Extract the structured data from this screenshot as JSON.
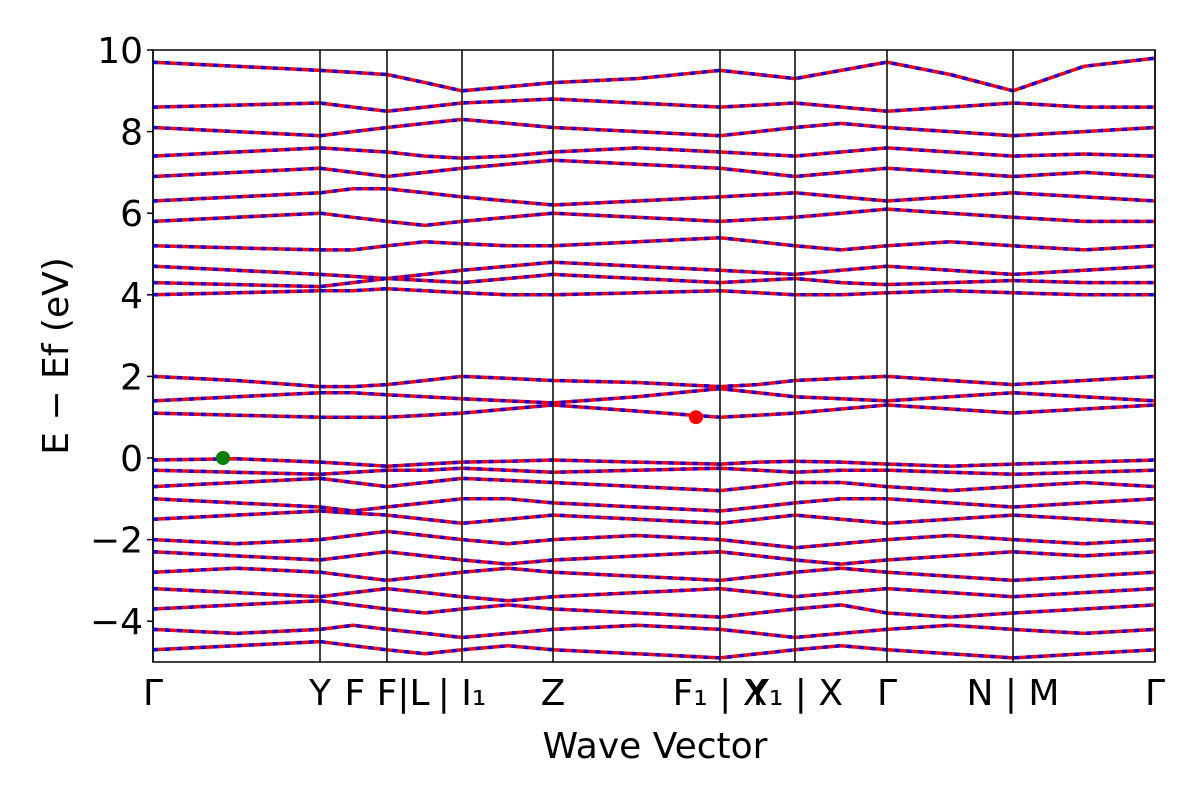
{
  "chart_data": {
    "type": "line",
    "xlabel": "Wave Vector",
    "ylabel": "E − Ef (eV)",
    "xlim": [
      0,
      1002
    ],
    "ylim": [
      -5,
      10
    ],
    "xticks": [
      {
        "value": 0,
        "label": "Γ"
      },
      {
        "value": 167,
        "label": "Y"
      },
      {
        "value": 234,
        "label": "F F|L"
      },
      {
        "value": 309,
        "label": "| I₁"
      },
      {
        "value": 400,
        "label": "Z"
      },
      {
        "value": 567,
        "label": "F₁ | X"
      },
      {
        "value": 642,
        "label": "Y₁ | X"
      },
      {
        "value": 734,
        "label": "Γ"
      },
      {
        "value": 860,
        "label": "N | M"
      },
      {
        "value": 1002,
        "label": "Γ"
      }
    ],
    "yticks": [
      {
        "value": -4,
        "label": "−4"
      },
      {
        "value": -2,
        "label": "−2"
      },
      0,
      2,
      4,
      6,
      8,
      10
    ],
    "color": "#ff0000",
    "dash_color": "#0000ff",
    "x": [
      0,
      83,
      167,
      200,
      234,
      272,
      309,
      355,
      400,
      484,
      567,
      605,
      642,
      688,
      734,
      797,
      860,
      931,
      1002
    ],
    "series": [
      {
        "values": [
          -0.05,
          -0.02,
          -0.1,
          -0.15,
          -0.2,
          -0.15,
          -0.1,
          -0.08,
          -0.05,
          -0.1,
          -0.15,
          -0.1,
          -0.08,
          -0.1,
          -0.15,
          -0.2,
          -0.15,
          -0.1,
          -0.05
        ]
      },
      {
        "values": [
          -0.3,
          -0.35,
          -0.4,
          -0.35,
          -0.3,
          -0.3,
          -0.25,
          -0.3,
          -0.35,
          -0.3,
          -0.25,
          -0.3,
          -0.35,
          -0.3,
          -0.3,
          -0.35,
          -0.4,
          -0.35,
          -0.3
        ]
      },
      {
        "values": [
          -0.7,
          -0.6,
          -0.5,
          -0.6,
          -0.7,
          -0.6,
          -0.5,
          -0.55,
          -0.6,
          -0.7,
          -0.8,
          -0.7,
          -0.6,
          -0.6,
          -0.7,
          -0.8,
          -0.7,
          -0.6,
          -0.7
        ]
      },
      {
        "values": [
          -1.0,
          -1.1,
          -1.2,
          -1.3,
          -1.2,
          -1.1,
          -1.0,
          -1.0,
          -1.1,
          -1.2,
          -1.3,
          -1.2,
          -1.1,
          -1.0,
          -1.0,
          -1.1,
          -1.2,
          -1.1,
          -1.0
        ]
      },
      {
        "values": [
          -1.5,
          -1.4,
          -1.3,
          -1.35,
          -1.4,
          -1.5,
          -1.6,
          -1.5,
          -1.4,
          -1.5,
          -1.6,
          -1.5,
          -1.4,
          -1.5,
          -1.6,
          -1.5,
          -1.4,
          -1.5,
          -1.6
        ]
      },
      {
        "values": [
          -2.0,
          -2.1,
          -2.0,
          -1.9,
          -1.8,
          -1.9,
          -2.0,
          -2.1,
          -2.0,
          -1.9,
          -2.0,
          -2.1,
          -2.2,
          -2.1,
          -2.0,
          -1.9,
          -2.0,
          -2.1,
          -2.0
        ]
      },
      {
        "values": [
          -2.3,
          -2.4,
          -2.5,
          -2.4,
          -2.3,
          -2.4,
          -2.5,
          -2.6,
          -2.5,
          -2.4,
          -2.3,
          -2.4,
          -2.5,
          -2.6,
          -2.5,
          -2.4,
          -2.3,
          -2.4,
          -2.3
        ]
      },
      {
        "values": [
          -2.8,
          -2.7,
          -2.8,
          -2.9,
          -3.0,
          -2.9,
          -2.8,
          -2.7,
          -2.8,
          -2.9,
          -3.0,
          -2.9,
          -2.8,
          -2.7,
          -2.8,
          -2.9,
          -3.0,
          -2.9,
          -2.8
        ]
      },
      {
        "values": [
          -3.2,
          -3.3,
          -3.4,
          -3.3,
          -3.2,
          -3.3,
          -3.4,
          -3.5,
          -3.4,
          -3.3,
          -3.2,
          -3.3,
          -3.4,
          -3.3,
          -3.2,
          -3.3,
          -3.4,
          -3.3,
          -3.2
        ]
      },
      {
        "values": [
          -3.7,
          -3.6,
          -3.5,
          -3.6,
          -3.7,
          -3.8,
          -3.7,
          -3.6,
          -3.7,
          -3.8,
          -3.9,
          -3.8,
          -3.7,
          -3.6,
          -3.8,
          -3.9,
          -3.8,
          -3.7,
          -3.6
        ]
      },
      {
        "values": [
          -4.2,
          -4.3,
          -4.2,
          -4.1,
          -4.2,
          -4.3,
          -4.4,
          -4.3,
          -4.2,
          -4.1,
          -4.2,
          -4.3,
          -4.4,
          -4.3,
          -4.2,
          -4.1,
          -4.2,
          -4.3,
          -4.2
        ]
      },
      {
        "values": [
          -4.7,
          -4.6,
          -4.5,
          -4.6,
          -4.7,
          -4.8,
          -4.7,
          -4.6,
          -4.7,
          -4.8,
          -4.9,
          -4.8,
          -4.7,
          -4.6,
          -4.7,
          -4.8,
          -4.9,
          -4.8,
          -4.7
        ]
      },
      {
        "values": [
          1.1,
          1.05,
          1.0,
          1.0,
          1.0,
          1.05,
          1.1,
          1.2,
          1.3,
          1.15,
          1.0,
          1.05,
          1.1,
          1.2,
          1.3,
          1.2,
          1.1,
          1.2,
          1.3
        ]
      },
      {
        "values": [
          1.4,
          1.5,
          1.6,
          1.6,
          1.55,
          1.5,
          1.45,
          1.4,
          1.35,
          1.5,
          1.7,
          1.6,
          1.5,
          1.45,
          1.4,
          1.5,
          1.6,
          1.5,
          1.4
        ]
      },
      {
        "values": [
          2.0,
          1.9,
          1.75,
          1.75,
          1.8,
          1.9,
          2.0,
          1.95,
          1.9,
          1.85,
          1.75,
          1.8,
          1.9,
          1.95,
          2.0,
          1.9,
          1.8,
          1.9,
          2.0
        ]
      },
      {
        "values": [
          4.0,
          4.05,
          4.1,
          4.1,
          4.15,
          4.1,
          4.05,
          4.0,
          4.0,
          4.05,
          4.1,
          4.05,
          4.0,
          4.0,
          4.05,
          4.1,
          4.05,
          4.0,
          4.0
        ]
      },
      {
        "values": [
          4.3,
          4.25,
          4.2,
          4.3,
          4.4,
          4.35,
          4.3,
          4.4,
          4.5,
          4.4,
          4.3,
          4.35,
          4.4,
          4.3,
          4.25,
          4.3,
          4.35,
          4.3,
          4.3
        ]
      },
      {
        "values": [
          4.7,
          4.6,
          4.5,
          4.45,
          4.4,
          4.5,
          4.6,
          4.7,
          4.8,
          4.7,
          4.6,
          4.55,
          4.5,
          4.6,
          4.7,
          4.6,
          4.5,
          4.6,
          4.7
        ]
      },
      {
        "values": [
          5.2,
          5.15,
          5.1,
          5.1,
          5.2,
          5.3,
          5.25,
          5.2,
          5.2,
          5.3,
          5.4,
          5.3,
          5.2,
          5.1,
          5.2,
          5.3,
          5.2,
          5.1,
          5.2
        ]
      },
      {
        "values": [
          5.8,
          5.9,
          6.0,
          5.9,
          5.8,
          5.7,
          5.8,
          5.9,
          6.0,
          5.9,
          5.8,
          5.85,
          5.9,
          6.0,
          6.1,
          6.0,
          5.9,
          5.8,
          5.8
        ]
      },
      {
        "values": [
          6.3,
          6.4,
          6.5,
          6.6,
          6.6,
          6.5,
          6.4,
          6.3,
          6.2,
          6.3,
          6.4,
          6.45,
          6.5,
          6.4,
          6.3,
          6.4,
          6.5,
          6.4,
          6.3
        ]
      },
      {
        "values": [
          6.9,
          7.0,
          7.1,
          7.0,
          6.9,
          7.0,
          7.1,
          7.2,
          7.3,
          7.2,
          7.1,
          7.0,
          6.9,
          7.0,
          7.1,
          7.0,
          6.9,
          7.0,
          6.9
        ]
      },
      {
        "values": [
          7.4,
          7.5,
          7.6,
          7.55,
          7.5,
          7.4,
          7.35,
          7.4,
          7.5,
          7.6,
          7.5,
          7.45,
          7.4,
          7.5,
          7.6,
          7.5,
          7.4,
          7.45,
          7.4
        ]
      },
      {
        "values": [
          8.1,
          8.0,
          7.9,
          8.0,
          8.1,
          8.2,
          8.3,
          8.2,
          8.1,
          8.0,
          7.9,
          8.0,
          8.1,
          8.2,
          8.1,
          8.0,
          7.9,
          8.0,
          8.1
        ]
      },
      {
        "values": [
          8.6,
          8.65,
          8.7,
          8.6,
          8.5,
          8.6,
          8.7,
          8.75,
          8.8,
          8.7,
          8.6,
          8.65,
          8.7,
          8.6,
          8.5,
          8.6,
          8.7,
          8.6,
          8.6
        ]
      },
      {
        "values": [
          9.7,
          9.6,
          9.5,
          9.45,
          9.4,
          9.2,
          9.0,
          9.1,
          9.2,
          9.3,
          9.5,
          9.4,
          9.3,
          9.5,
          9.7,
          9.4,
          9.0,
          9.6,
          9.8
        ]
      }
    ],
    "markers": [
      {
        "x": 70,
        "y": 0,
        "color": "#008000"
      },
      {
        "x": 543,
        "y": 1,
        "color": "#ff0000"
      }
    ]
  }
}
